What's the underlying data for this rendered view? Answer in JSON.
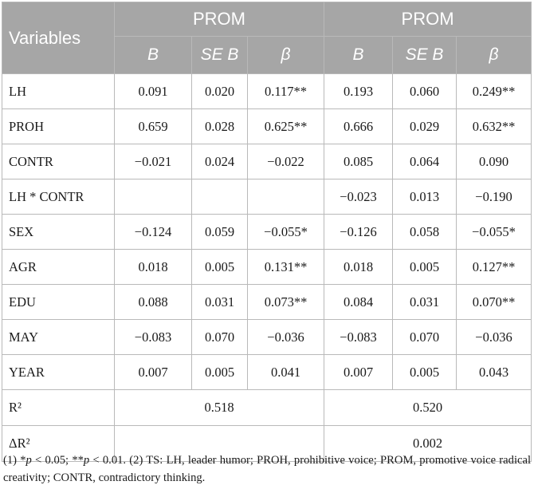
{
  "table": {
    "header": {
      "variables": "Variables",
      "group1": "PROM",
      "group2": "PROM",
      "cols": [
        "B",
        "SE B",
        "β",
        "B",
        "SE B",
        "β"
      ]
    },
    "rows": [
      {
        "label": "LH",
        "cells": [
          "0.091",
          "0.020",
          "0.117**",
          "0.193",
          "0.060",
          "0.249**"
        ]
      },
      {
        "label": "PROH",
        "cells": [
          "0.659",
          "0.028",
          "0.625**",
          "0.666",
          "0.029",
          "0.632**"
        ]
      },
      {
        "label": "CONTR",
        "cells": [
          "−0.021",
          "0.024",
          "−0.022",
          "0.085",
          "0.064",
          "0.090"
        ]
      },
      {
        "label": "LH * CONTR",
        "cells": [
          "",
          "",
          "",
          "−0.023",
          "0.013",
          "−0.190"
        ]
      },
      {
        "label": "SEX",
        "cells": [
          "−0.124",
          "0.059",
          "−0.055*",
          "−0.126",
          "0.058",
          "−0.055*"
        ]
      },
      {
        "label": "AGR",
        "cells": [
          "0.018",
          "0.005",
          "0.131**",
          "0.018",
          "0.005",
          "0.127**"
        ]
      },
      {
        "label": "EDU",
        "cells": [
          "0.088",
          "0.031",
          "0.073**",
          "0.084",
          "0.031",
          "0.070**"
        ]
      },
      {
        "label": "MAY",
        "cells": [
          "−0.083",
          "0.070",
          "−0.036",
          "−0.083",
          "0.070",
          "−0.036"
        ]
      },
      {
        "label": "YEAR",
        "cells": [
          "0.007",
          "0.005",
          "0.041",
          "0.007",
          "0.005",
          "0.043"
        ]
      }
    ],
    "r2": {
      "label": "R²",
      "model1": "0.518",
      "model2": "0.520"
    },
    "delta_r2": {
      "label": "ΔR²",
      "model1": "",
      "model2": "0.002"
    }
  },
  "footnote": {
    "part1": "(1) *",
    "p1": "p",
    "part2": " < 0.05; **",
    "p2": "p",
    "part3": " < 0.01. (2) TS: LH, leader humor; PROH, prohibitive voice; PROM, promotive voice radical creativity; CONTR, contradictory thinking."
  }
}
